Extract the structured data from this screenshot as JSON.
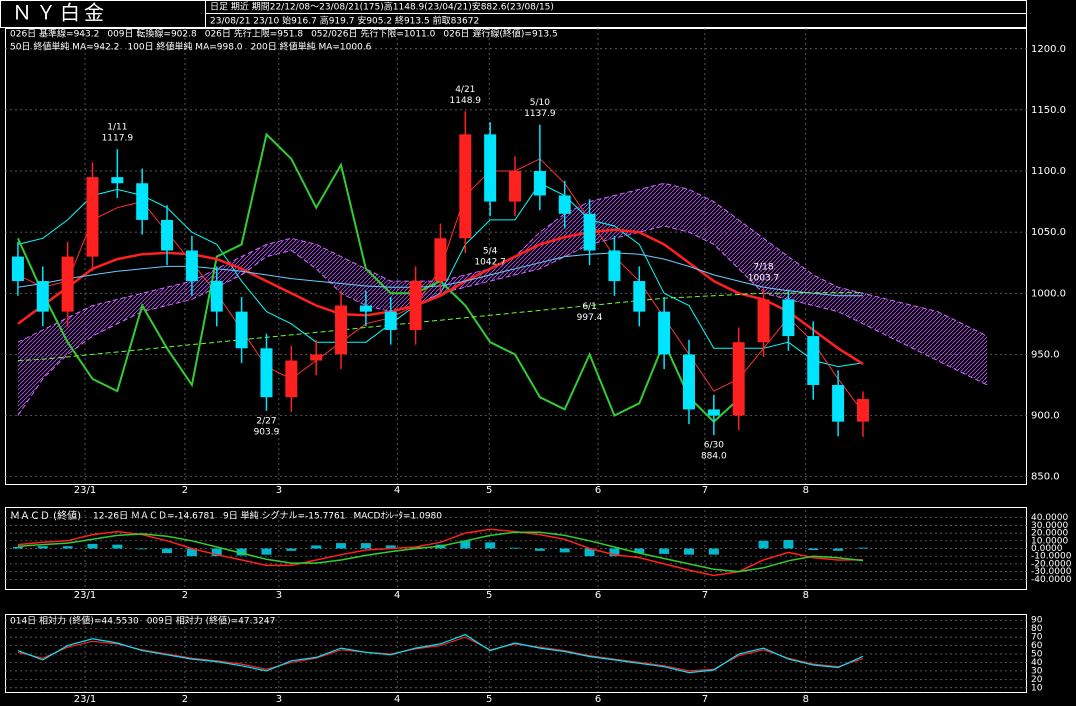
{
  "header": {
    "title": "ＮＹ白金",
    "info1": "日足 期近 期間22/12/08～23/08/21(175)高1148.9(23/04/21)安882.6(23/08/15)",
    "info2": "23/08/21 23/10 始916.7 高919.7 安905.2 終913.5 前取83672"
  },
  "chart_data": [
    {
      "type": "candlestick",
      "x": [
        2,
        7,
        12,
        17,
        22,
        27,
        32,
        37,
        42,
        47,
        52,
        57,
        62,
        67,
        72,
        77,
        82,
        87,
        92,
        97,
        102,
        107,
        112,
        117,
        122,
        127,
        132,
        137,
        142,
        147,
        152,
        157,
        162,
        167,
        172,
        177,
        182,
        187,
        192,
        197
      ],
      "open": [
        1030,
        1010,
        985,
        1030,
        1095,
        1090,
        1060,
        1035,
        1010,
        985,
        955,
        915,
        945,
        950,
        990,
        985,
        970,
        1010,
        1045,
        1130,
        1075,
        1100,
        1080,
        1065,
        1035,
        1010,
        985,
        950,
        905,
        900,
        960,
        995,
        965,
        925,
        895,
        null,
        null,
        null,
        null,
        null
      ],
      "high": [
        1042,
        1022,
        1042,
        1107,
        1117.9,
        1102,
        1072,
        1047,
        1022,
        997,
        967,
        957,
        962,
        1002,
        1002,
        997,
        1022,
        1057,
        1148.9,
        1140,
        1112,
        1137.9,
        1092,
        1077,
        1047,
        1022,
        997,
        962,
        917,
        972,
        1003.7,
        1003,
        977,
        937,
        919.7,
        null,
        null,
        null,
        null,
        null
      ],
      "low": [
        998,
        973,
        973,
        1018,
        1078,
        1048,
        1023,
        998,
        973,
        943,
        903.9,
        903,
        933,
        938,
        973,
        958,
        958,
        998,
        1033,
        1063,
        1063,
        1068,
        1053,
        1023,
        998,
        973,
        938,
        893,
        884,
        888,
        948,
        953,
        913,
        883,
        882.6,
        null,
        null,
        null,
        null,
        null
      ],
      "close": [
        1010,
        985,
        1030,
        1095,
        1090,
        1060,
        1035,
        1010,
        985,
        955,
        915,
        945,
        950,
        990,
        985,
        970,
        1010,
        1045,
        1130,
        1075,
        1100,
        1080,
        1065,
        1035,
        1010,
        985,
        950,
        905,
        900,
        960,
        995,
        965,
        925,
        895,
        913.5,
        null,
        null,
        null,
        null,
        null
      ],
      "up_color": "#ff2020",
      "down_color": "#00e5ff",
      "series": [
        {
          "name": "026日 基準線=943.2",
          "color": "#00ffff",
          "width": 1,
          "values": [
            1040,
            1045,
            1060,
            1080,
            1085,
            1080,
            1070,
            1050,
            1040,
            1010,
            985,
            975,
            960,
            960,
            960,
            975,
            990,
            1000,
            1040,
            1060,
            1060,
            1090,
            1080,
            1060,
            1055,
            1040,
            1000,
            990,
            955,
            955,
            955,
            960,
            945,
            940,
            943.2,
            null,
            null,
            null,
            null,
            null
          ]
        },
        {
          "name": "009日 転換線=902.8",
          "color": "#ff3030",
          "width": 1,
          "values": [
            1015,
            1005,
            1010,
            1060,
            1070,
            1075,
            1050,
            1025,
            1000,
            970,
            940,
            930,
            945,
            960,
            975,
            980,
            990,
            1020,
            1080,
            1100,
            1100,
            1110,
            1090,
            1060,
            1030,
            1010,
            980,
            950,
            920,
            930,
            955,
            980,
            960,
            930,
            902.8,
            null,
            null,
            null,
            null,
            null
          ]
        },
        {
          "name": "026日 先行上限=951.8",
          "color": "#cc66ff",
          "width": 1,
          "dash": true,
          "values": [
            900,
            930,
            950,
            965,
            975,
            985,
            990,
            995,
            1005,
            1015,
            1030,
            1035,
            1020,
            1000,
            990,
            985,
            990,
            1000,
            1005,
            1010,
            1015,
            1020,
            1030,
            1040,
            1045,
            1050,
            1055,
            1050,
            1040,
            1020,
            1000,
            995,
            990,
            985,
            975,
            965,
            955,
            945,
            935,
            925
          ]
        },
        {
          "name": "052/026日 先行下限=1011.0",
          "color": "#cc66ff",
          "width": 1,
          "dash": true,
          "values": [
            960,
            970,
            980,
            990,
            995,
            1000,
            1005,
            1010,
            1020,
            1030,
            1040,
            1045,
            1040,
            1030,
            1020,
            1010,
            1010,
            1010,
            1015,
            1020,
            1030,
            1050,
            1065,
            1075,
            1080,
            1085,
            1090,
            1085,
            1075,
            1060,
            1045,
            1030,
            1015,
            1005,
            1000,
            995,
            990,
            985,
            975,
            965
          ]
        },
        {
          "name": "026日 遅行線(終値)=913.5",
          "color": "#33cc33",
          "width": 2,
          "values": [
            1045,
            1000,
            960,
            930,
            920,
            990,
            955,
            925,
            1030,
            1040,
            1130,
            1110,
            1070,
            1105,
            1020,
            1000,
            1000,
            1010,
            990,
            960,
            950,
            915,
            905,
            950,
            900,
            910,
            960,
            915,
            895,
            913.5,
            null,
            null,
            null,
            null,
            null,
            null,
            null,
            null,
            null,
            null
          ]
        },
        {
          "name": "50日 終値単純 MA=942.2",
          "color": "#ff2020",
          "width": 2.5,
          "values": [
            975,
            990,
            1005,
            1020,
            1028,
            1032,
            1033,
            1032,
            1028,
            1020,
            1010,
            1000,
            990,
            983,
            982,
            985,
            990,
            998,
            1010,
            1020,
            1030,
            1040,
            1046,
            1050,
            1052,
            1050,
            1040,
            1025,
            1010,
            1000,
            995,
            985,
            970,
            955,
            942.2,
            null,
            null,
            null,
            null,
            null
          ]
        },
        {
          "name": "100日 終値単純 MA=998.0",
          "color": "#66ccff",
          "width": 1,
          "values": [
            1005,
            1008,
            1012,
            1015,
            1018,
            1020,
            1022,
            1022,
            1020,
            1018,
            1015,
            1012,
            1010,
            1008,
            1006,
            1005,
            1005,
            1006,
            1010,
            1015,
            1020,
            1025,
            1030,
            1032,
            1033,
            1032,
            1028,
            1022,
            1015,
            1010,
            1005,
            1002,
            1000,
            998,
            998,
            null,
            null,
            null,
            null,
            null
          ]
        },
        {
          "name": "200日 終値単純 MA=1000.6",
          "color": "#66ff33",
          "width": 1,
          "dash": true,
          "values": [
            945,
            946,
            948,
            950,
            952,
            954,
            956,
            958,
            960,
            962,
            964,
            966,
            968,
            970,
            972,
            974,
            976,
            978,
            980,
            982,
            984,
            986,
            988,
            990,
            992,
            994,
            996,
            997,
            998,
            999,
            1000,
            1000,
            1000.5,
            1000.6,
            1000.6,
            null,
            null,
            null,
            null,
            null
          ]
        }
      ],
      "cloud_color": "#bb55ff",
      "annotations": [
        {
          "date": "1/11",
          "value": 1117.9,
          "value_label": "1117.9",
          "x": 22,
          "side": "above"
        },
        {
          "date": "2/27",
          "value": 903.9,
          "value_label": "903.9",
          "x": 52,
          "side": "below"
        },
        {
          "date": "4/21",
          "value": 1148.9,
          "value_label": "1148.9",
          "x": 92,
          "side": "above"
        },
        {
          "date": "5/4",
          "value": 1042.7,
          "value_label": "1042.7",
          "x": 97,
          "side": "below"
        },
        {
          "date": "5/10",
          "value": 1137.9,
          "value_label": "1137.9",
          "x": 107,
          "side": "above"
        },
        {
          "date": "6/1",
          "value": 997.4,
          "value_label": "997.4",
          "x": 117,
          "side": "below"
        },
        {
          "date": "6/30",
          "value": 884,
          "value_label": "884.0",
          "x": 142,
          "side": "below"
        },
        {
          "date": "7/18",
          "value": 1003.7,
          "value_label": "1003.7",
          "x": 152,
          "side": "above"
        }
      ],
      "xlim": [
        -0.6,
        205
      ],
      "xticks": [
        {
          "value": 15.5,
          "label": "23/1"
        },
        35.6,
        54.5,
        78.3,
        96.8,
        118.7,
        140.2,
        160.5
      ],
      "xtick_labels": [
        "23/1",
        "2",
        "3",
        "4",
        "5",
        "6",
        "7",
        "8"
      ],
      "ylim": [
        844,
        1217
      ],
      "yticks": [
        {
          "value": 850,
          "label": "850.0"
        },
        {
          "value": 900,
          "label": "900.0"
        },
        {
          "value": 950,
          "label": "950.0"
        },
        {
          "value": 1000,
          "label": "1000.0"
        },
        {
          "value": 1050,
          "label": "1050.0"
        },
        {
          "value": 1100,
          "label": "1100.0"
        },
        {
          "value": 1150,
          "label": "1150.0"
        },
        {
          "value": 1200,
          "label": "1200.0"
        }
      ],
      "grid": true
    },
    {
      "type": "macd",
      "title": "ＭＡＣＤ (終値)",
      "x": [
        2,
        7,
        12,
        17,
        22,
        27,
        32,
        37,
        42,
        47,
        52,
        57,
        62,
        67,
        72,
        77,
        82,
        87,
        92,
        97,
        102,
        107,
        112,
        117,
        122,
        127,
        132,
        137,
        142,
        147,
        152,
        157,
        162,
        167,
        172
      ],
      "series": [
        {
          "name": "12-26日 ＭＡＣＤ=-14.6781",
          "color": "#ff2020",
          "style": "line",
          "values": [
            5,
            8,
            10,
            18,
            22,
            18,
            10,
            0,
            -8,
            -15,
            -22,
            -22,
            -15,
            -8,
            -2,
            0,
            2,
            8,
            20,
            25,
            22,
            18,
            12,
            0,
            -8,
            -12,
            -20,
            -28,
            -35,
            -30,
            -15,
            -5,
            -12,
            -15,
            -14.6781
          ]
        },
        {
          "name": "9日 単純 シグナル=-15.7761",
          "color": "#33cc33",
          "style": "line",
          "values": [
            3,
            5,
            7,
            12,
            17,
            19,
            16,
            10,
            2,
            -6,
            -14,
            -19,
            -19,
            -15,
            -9,
            -4,
            0,
            3,
            10,
            17,
            21,
            21,
            17,
            10,
            2,
            -6,
            -13,
            -20,
            -27,
            -30,
            -25,
            -16,
            -10,
            -12,
            -15.7761
          ]
        },
        {
          "name": "MACDｵｼﾚｰﾀ=1.0980",
          "color": "#00e5ff",
          "style": "bar",
          "values": [
            2,
            3,
            3,
            6,
            5,
            -1,
            -6,
            -10,
            -10,
            -9,
            -8,
            -3,
            4,
            7,
            7,
            4,
            2,
            5,
            10,
            8,
            1,
            -3,
            -5,
            -10,
            -10,
            -6,
            -7,
            -8,
            -8,
            0,
            10,
            11,
            -2,
            -3,
            1.098
          ]
        }
      ],
      "xlim": [
        -0.6,
        205
      ],
      "xticks": [
        {
          "value": 15.5,
          "label": "23/1"
        },
        35.6,
        54.5,
        78.3,
        96.8,
        118.7,
        140.2,
        160.5
      ],
      "xtick_labels": [
        "23/1",
        "2",
        "3",
        "4",
        "5",
        "6",
        "7",
        "8"
      ],
      "ylim": [
        -50,
        50
      ],
      "yticks": [
        {
          "value": -40,
          "label": "-40.0000"
        },
        {
          "value": -30,
          "label": "-30.0000"
        },
        {
          "value": -20,
          "label": "-20.0000"
        },
        {
          "value": -10,
          "label": "-10.0000"
        },
        {
          "value": 0,
          "label": "0.0000"
        },
        {
          "value": 10,
          "label": "10.0000"
        },
        {
          "value": 20,
          "label": "20.0000"
        },
        {
          "value": 30,
          "label": "30.0000"
        },
        {
          "value": 40,
          "label": "40.0000"
        }
      ],
      "grid": true
    },
    {
      "type": "rsi",
      "x": [
        2,
        7,
        12,
        17,
        22,
        27,
        32,
        37,
        42,
        47,
        52,
        57,
        62,
        67,
        72,
        77,
        82,
        87,
        92,
        97,
        102,
        107,
        112,
        117,
        122,
        127,
        132,
        137,
        142,
        147,
        152,
        157,
        162,
        167,
        172
      ],
      "series": [
        {
          "name": "014日 相対力 (終値)=44.5530",
          "color": "#ff2020",
          "style": "line",
          "values": [
            52,
            45,
            58,
            65,
            62,
            55,
            50,
            45,
            42,
            38,
            32,
            40,
            45,
            55,
            52,
            50,
            56,
            60,
            70,
            55,
            62,
            58,
            54,
            48,
            44,
            40,
            36,
            30,
            32,
            48,
            55,
            45,
            38,
            35,
            44.553
          ]
        },
        {
          "name": "009日 相対力 (終値)=47.3247",
          "color": "#00e5ff",
          "style": "line",
          "values": [
            54,
            43,
            60,
            68,
            63,
            54,
            49,
            44,
            41,
            36,
            30,
            42,
            46,
            57,
            52,
            49,
            57,
            62,
            73,
            54,
            63,
            57,
            53,
            47,
            43,
            39,
            35,
            28,
            31,
            50,
            57,
            44,
            37,
            34,
            47.3247
          ]
        }
      ],
      "xlim": [
        -0.6,
        205
      ],
      "xticks": [
        {
          "value": 15.5,
          "label": "23/1"
        },
        35.6,
        54.5,
        78.3,
        96.8,
        118.7,
        140.2,
        160.5
      ],
      "xtick_labels": [
        "23/1",
        "2",
        "3",
        "4",
        "5",
        "6",
        "7",
        "8"
      ],
      "ylim": [
        5,
        95
      ],
      "yticks": [
        10,
        20,
        30,
        40,
        50,
        60,
        70,
        80,
        90
      ],
      "grid": true
    }
  ]
}
